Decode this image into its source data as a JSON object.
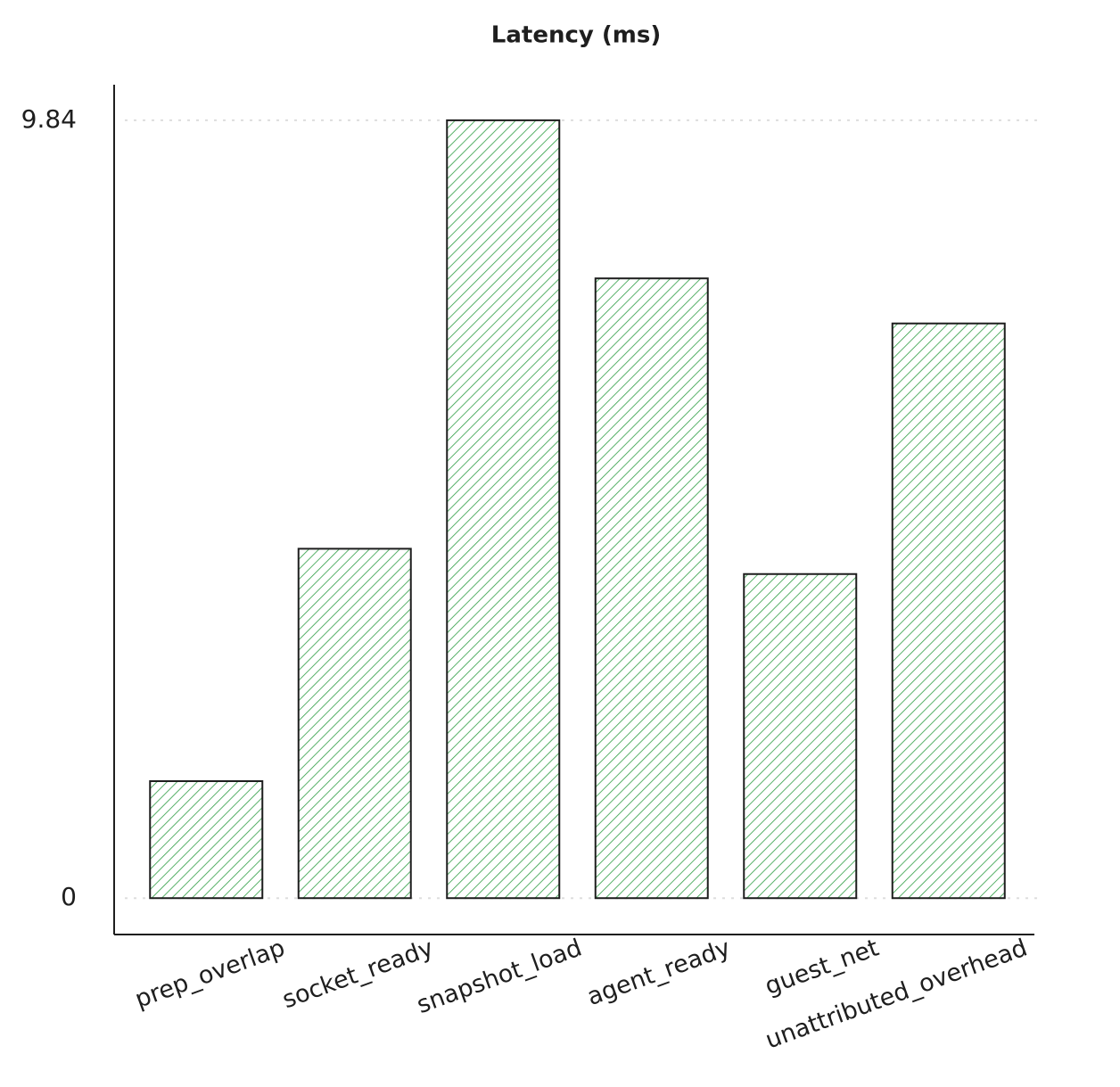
{
  "chart_data": {
    "type": "bar",
    "title": "Latency (ms)",
    "categories": [
      "prep_overlap",
      "socket_ready",
      "snapshot_load",
      "agent_ready",
      "guest_net",
      "unattributed_overhead"
    ],
    "values": [
      1.48,
      4.42,
      9.84,
      7.84,
      4.1,
      7.27
    ],
    "color": "#2f9e44",
    "ylim": [
      -0.46,
      10.29
    ],
    "yticks": [
      0,
      9.84
    ],
    "grid": true
  }
}
